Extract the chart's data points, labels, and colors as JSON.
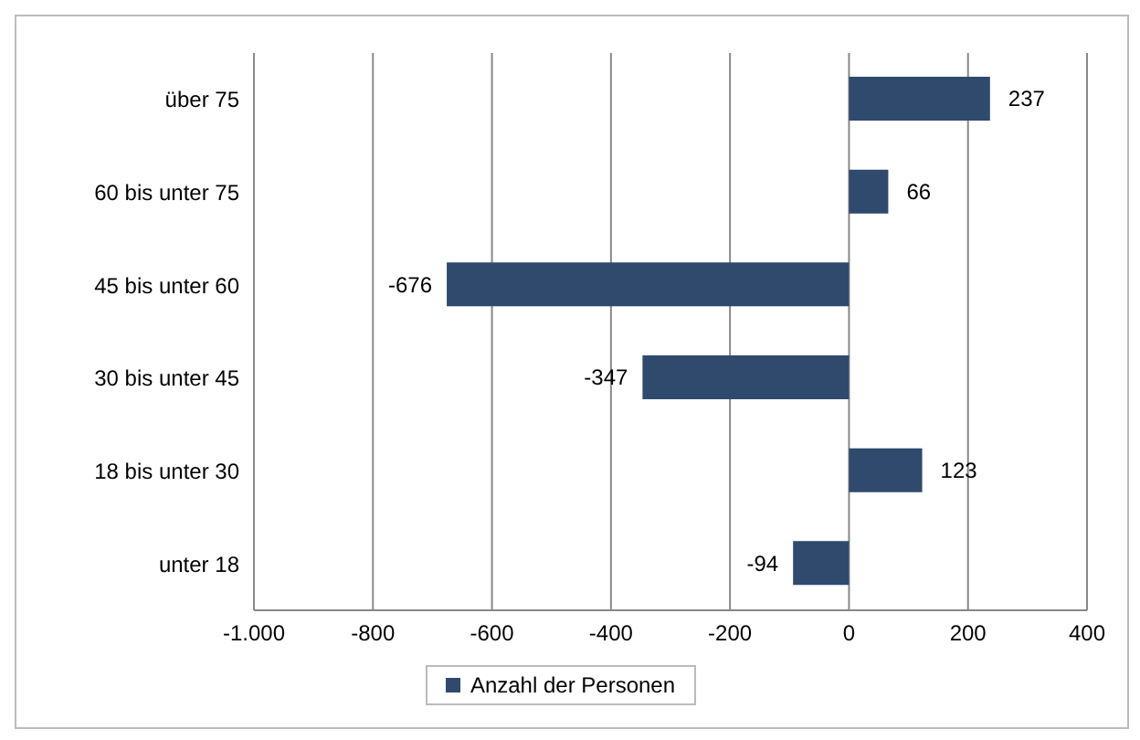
{
  "chart_data": {
    "type": "bar",
    "orientation": "horizontal",
    "categories": [
      "über 75",
      "60 bis unter 75",
      "45 bis unter 60",
      "30 bis unter 45",
      "18 bis unter 30",
      "unter 18"
    ],
    "series": [
      {
        "name": "Anzahl der Personen",
        "color": "#2f4a6d",
        "values": [
          237,
          66,
          -676,
          -347,
          123,
          -94
        ]
      }
    ],
    "xlim": [
      -1000,
      400
    ],
    "xticks": [
      {
        "value": -1000,
        "label": "-1.000"
      },
      -800,
      -600,
      -400,
      -200,
      0,
      200,
      400
    ],
    "grid": "x",
    "legend": "bottom",
    "data_labels": true
  }
}
